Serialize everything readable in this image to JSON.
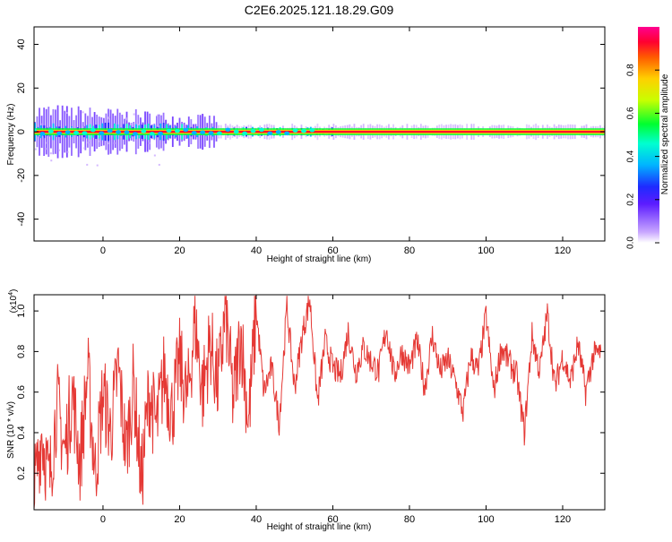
{
  "title": "C2E6.2025.121.18.29.G09",
  "colors": {
    "snr_line": "#e53935",
    "frame": "#000000"
  },
  "chart_data": [
    {
      "type": "heatmap",
      "title": "C2E6.2025.121.18.29.G09",
      "xlabel": "Height of straight line (km)",
      "ylabel": "Frequency (Hz)",
      "xlim": [
        -18,
        131
      ],
      "ylim": [
        -50,
        48
      ],
      "xticks": [
        0,
        20,
        40,
        60,
        80,
        100,
        120
      ],
      "xtick_labels": [
        "0",
        "20",
        "40",
        "60",
        "80",
        "100",
        "120"
      ],
      "yticks": [
        -40,
        -20,
        0,
        20,
        40
      ],
      "ytick_labels": [
        "-40",
        "-20",
        "0",
        "20",
        "40"
      ],
      "colorbar": {
        "label": "Normalized spectral amplitude",
        "range": [
          0,
          1
        ],
        "ticks": [
          0.0,
          0.2,
          0.4,
          0.6,
          0.8
        ],
        "tick_labels": [
          "0.0",
          "0.2",
          "0.4",
          "0.6",
          "0.8"
        ]
      },
      "dominant_frequency_hz": 0
    },
    {
      "type": "line",
      "xlabel": "Height of straight line (km)",
      "ylabel": "SNR (10 * v/v)",
      "y_multiplier_label": "(x10",
      "y_multiplier_exp": "4",
      "xlim": [
        -18,
        131
      ],
      "ylim": [
        0.02,
        1.08
      ],
      "xticks": [
        0,
        20,
        40,
        60,
        80,
        100,
        120
      ],
      "xtick_labels": [
        "0",
        "20",
        "40",
        "60",
        "80",
        "100",
        "120"
      ],
      "yticks": [
        0.2,
        0.4,
        0.6,
        0.8,
        1.0
      ],
      "ytick_labels": [
        "0.2",
        "0.4",
        "0.6",
        "0.8",
        "1.0"
      ],
      "series": [
        {
          "x": [
            -18,
            -16,
            -14,
            -12,
            -10,
            -8,
            -6,
            -4,
            -2,
            0,
            2,
            4,
            6,
            8,
            10,
            12,
            14,
            16,
            18,
            20,
            22,
            24,
            26,
            28,
            30,
            32,
            34,
            36,
            38,
            40,
            42,
            44,
            46,
            48,
            50,
            52,
            54,
            56,
            58,
            60,
            62,
            64,
            66,
            68,
            70,
            72,
            74,
            76,
            78,
            80,
            82,
            84,
            86,
            88,
            90,
            92,
            94,
            96,
            98,
            100,
            102,
            104,
            106,
            108,
            110,
            112,
            114,
            116,
            118,
            120,
            122,
            124,
            126,
            128,
            130
          ],
          "y": [
            0.1,
            0.4,
            0.15,
            0.55,
            0.3,
            0.6,
            0.25,
            0.7,
            0.2,
            0.6,
            0.4,
            0.72,
            0.3,
            0.65,
            0.15,
            0.6,
            0.42,
            0.7,
            0.5,
            0.75,
            0.55,
            0.95,
            0.6,
            0.85,
            0.62,
            1.0,
            0.55,
            0.9,
            0.45,
            1.0,
            0.6,
            0.72,
            0.45,
            1.02,
            0.62,
            0.88,
            1.06,
            0.55,
            0.85,
            0.72,
            0.68,
            0.9,
            0.7,
            0.82,
            0.75,
            0.7,
            0.92,
            0.68,
            0.8,
            0.72,
            0.85,
            0.62,
            0.88,
            0.7,
            0.76,
            0.65,
            0.5,
            0.78,
            0.7,
            0.98,
            0.6,
            0.82,
            0.75,
            0.68,
            0.4,
            0.88,
            0.7,
            0.99,
            0.62,
            0.78,
            0.65,
            0.84,
            0.6,
            0.78,
            0.8
          ]
        }
      ]
    }
  ]
}
